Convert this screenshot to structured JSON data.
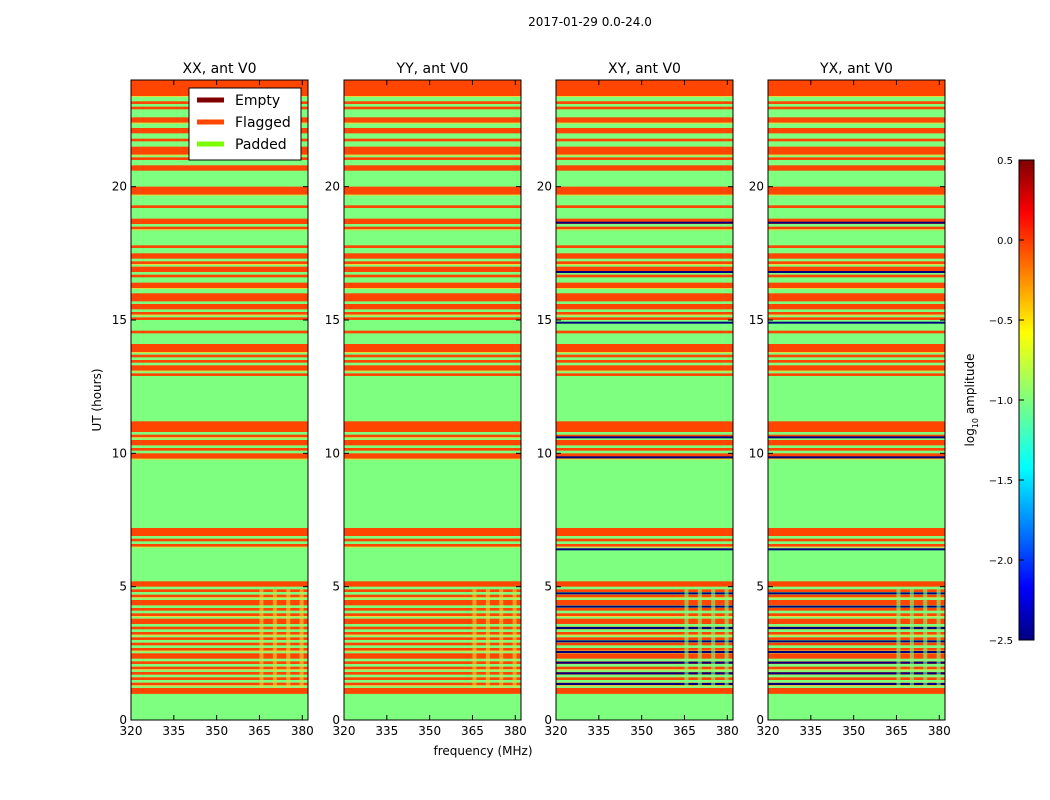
{
  "figure_title": "2017-01-29 0.0-24.0",
  "colors": {
    "empty": "#800000",
    "flagged": "#ff4500",
    "padded": "#7cfc00",
    "background": "#7fff7f",
    "dark": "#00007f",
    "yellow": "#e8d840",
    "cyan": "#3fd9d0"
  },
  "chart_data": {
    "type": "heatmap",
    "shared_axes": {
      "xlabel": "frequency (MHz)",
      "ylabel": "UT (hours)",
      "xlim": [
        320,
        382
      ],
      "ylim": [
        0,
        24
      ],
      "xticks": [
        320,
        335,
        350,
        365,
        380
      ],
      "yticks": [
        0,
        5,
        10,
        15,
        20
      ],
      "xtick_labels": [
        "320",
        "335",
        "350",
        "365",
        "380"
      ],
      "ytick_labels": [
        "0",
        "5",
        "10",
        "15",
        "20"
      ]
    },
    "panels": [
      {
        "title": "XX, ant V0",
        "flag_rows": [
          [
            0.98,
            1.2
          ],
          [
            1.3,
            1.4
          ],
          [
            1.5,
            1.6
          ],
          [
            1.7,
            1.8
          ],
          [
            1.9,
            2.0
          ],
          [
            2.1,
            2.2
          ],
          [
            2.3,
            2.5
          ],
          [
            2.6,
            2.7
          ],
          [
            2.8,
            2.9
          ],
          [
            3.0,
            3.1
          ],
          [
            3.2,
            3.3
          ],
          [
            3.4,
            3.5
          ],
          [
            3.6,
            3.8
          ],
          [
            3.9,
            4.0
          ],
          [
            4.1,
            4.2
          ],
          [
            4.3,
            4.5
          ],
          [
            4.6,
            4.7
          ],
          [
            4.8,
            4.9
          ],
          [
            5.0,
            5.2
          ],
          [
            6.5,
            6.6
          ],
          [
            6.7,
            6.8
          ],
          [
            6.9,
            7.2
          ],
          [
            9.8,
            10.0
          ],
          [
            10.1,
            10.2
          ],
          [
            10.3,
            10.5
          ],
          [
            10.6,
            10.7
          ],
          [
            10.8,
            11.2
          ],
          [
            12.9,
            13.0
          ],
          [
            13.1,
            13.3
          ],
          [
            13.4,
            13.5
          ],
          [
            13.6,
            13.7
          ],
          [
            13.8,
            14.1
          ],
          [
            14.5,
            14.6
          ],
          [
            15.0,
            15.1
          ],
          [
            15.2,
            15.3
          ],
          [
            15.4,
            15.6
          ],
          [
            15.7,
            16.0
          ],
          [
            16.2,
            16.4
          ],
          [
            16.6,
            16.7
          ],
          [
            16.8,
            17.0
          ],
          [
            17.1,
            17.2
          ],
          [
            17.3,
            17.5
          ],
          [
            17.7,
            17.8
          ],
          [
            18.4,
            18.5
          ],
          [
            18.6,
            18.8
          ],
          [
            19.2,
            19.3
          ],
          [
            19.7,
            20.0
          ],
          [
            20.6,
            20.8
          ],
          [
            21.0,
            21.1
          ],
          [
            21.2,
            21.5
          ],
          [
            21.7,
            21.8
          ],
          [
            22.0,
            22.2
          ],
          [
            22.4,
            22.6
          ],
          [
            22.9,
            23.0
          ],
          [
            23.1,
            23.2
          ],
          [
            23.4,
            24.0
          ]
        ],
        "dark_rows": [],
        "legend": [
          "Empty",
          "Flagged",
          "Padded"
        ]
      },
      {
        "title": "YY, ant V0",
        "flag_rows": [
          [
            0.98,
            1.2
          ],
          [
            1.3,
            1.4
          ],
          [
            1.5,
            1.6
          ],
          [
            1.7,
            1.8
          ],
          [
            1.9,
            2.0
          ],
          [
            2.1,
            2.2
          ],
          [
            2.3,
            2.5
          ],
          [
            2.6,
            2.7
          ],
          [
            2.8,
            2.9
          ],
          [
            3.0,
            3.1
          ],
          [
            3.2,
            3.3
          ],
          [
            3.4,
            3.5
          ],
          [
            3.6,
            3.8
          ],
          [
            3.9,
            4.0
          ],
          [
            4.1,
            4.2
          ],
          [
            4.3,
            4.5
          ],
          [
            4.6,
            4.7
          ],
          [
            4.8,
            4.9
          ],
          [
            5.0,
            5.2
          ],
          [
            6.5,
            6.6
          ],
          [
            6.7,
            6.8
          ],
          [
            6.9,
            7.2
          ],
          [
            9.8,
            10.0
          ],
          [
            10.1,
            10.2
          ],
          [
            10.3,
            10.5
          ],
          [
            10.6,
            10.7
          ],
          [
            10.8,
            11.2
          ],
          [
            12.9,
            13.0
          ],
          [
            13.1,
            13.3
          ],
          [
            13.4,
            13.5
          ],
          [
            13.6,
            13.7
          ],
          [
            13.8,
            14.1
          ],
          [
            14.5,
            14.6
          ],
          [
            15.0,
            15.1
          ],
          [
            15.2,
            15.3
          ],
          [
            15.4,
            15.6
          ],
          [
            15.7,
            16.0
          ],
          [
            16.2,
            16.4
          ],
          [
            16.6,
            16.7
          ],
          [
            16.8,
            17.0
          ],
          [
            17.1,
            17.2
          ],
          [
            17.3,
            17.5
          ],
          [
            17.7,
            17.8
          ],
          [
            18.4,
            18.5
          ],
          [
            18.6,
            18.8
          ],
          [
            19.2,
            19.3
          ],
          [
            19.7,
            20.0
          ],
          [
            20.6,
            20.8
          ],
          [
            21.0,
            21.1
          ],
          [
            21.2,
            21.5
          ],
          [
            21.7,
            21.8
          ],
          [
            22.0,
            22.2
          ],
          [
            22.4,
            22.6
          ],
          [
            22.9,
            23.0
          ],
          [
            23.1,
            23.2
          ],
          [
            23.4,
            24.0
          ]
        ],
        "dark_rows": []
      },
      {
        "title": "XY, ant V0",
        "flag_rows": [
          [
            0.98,
            1.2
          ],
          [
            1.3,
            1.4
          ],
          [
            1.5,
            1.6
          ],
          [
            1.7,
            1.8
          ],
          [
            1.9,
            2.0
          ],
          [
            2.1,
            2.2
          ],
          [
            2.3,
            2.5
          ],
          [
            2.6,
            2.7
          ],
          [
            2.8,
            2.9
          ],
          [
            3.0,
            3.1
          ],
          [
            3.2,
            3.3
          ],
          [
            3.4,
            3.5
          ],
          [
            3.6,
            3.8
          ],
          [
            3.9,
            4.0
          ],
          [
            4.1,
            4.2
          ],
          [
            4.3,
            4.5
          ],
          [
            4.6,
            4.7
          ],
          [
            4.8,
            4.9
          ],
          [
            5.0,
            5.2
          ],
          [
            6.5,
            6.6
          ],
          [
            6.7,
            6.8
          ],
          [
            6.9,
            7.2
          ],
          [
            9.8,
            10.0
          ],
          [
            10.1,
            10.2
          ],
          [
            10.3,
            10.5
          ],
          [
            10.6,
            10.7
          ],
          [
            10.8,
            11.2
          ],
          [
            12.9,
            13.0
          ],
          [
            13.1,
            13.3
          ],
          [
            13.4,
            13.5
          ],
          [
            13.6,
            13.7
          ],
          [
            13.8,
            14.1
          ],
          [
            14.5,
            14.6
          ],
          [
            15.0,
            15.1
          ],
          [
            15.2,
            15.3
          ],
          [
            15.4,
            15.6
          ],
          [
            15.7,
            16.0
          ],
          [
            16.2,
            16.4
          ],
          [
            16.6,
            16.7
          ],
          [
            16.8,
            17.0
          ],
          [
            17.1,
            17.2
          ],
          [
            17.3,
            17.5
          ],
          [
            17.7,
            17.8
          ],
          [
            18.4,
            18.5
          ],
          [
            18.6,
            18.8
          ],
          [
            19.2,
            19.3
          ],
          [
            19.7,
            20.0
          ],
          [
            20.6,
            20.8
          ],
          [
            21.0,
            21.1
          ],
          [
            21.2,
            21.5
          ],
          [
            21.7,
            21.8
          ],
          [
            22.0,
            22.2
          ],
          [
            22.4,
            22.6
          ],
          [
            22.9,
            23.0
          ],
          [
            23.1,
            23.2
          ],
          [
            23.4,
            24.0
          ]
        ],
        "dark_rows": [
          1.35,
          1.75,
          2.15,
          2.55,
          2.95,
          3.45,
          4.25,
          4.75,
          6.4,
          9.85,
          10.6,
          14.9,
          16.8,
          18.65
        ]
      },
      {
        "title": "YX, ant V0",
        "flag_rows": [
          [
            0.98,
            1.2
          ],
          [
            1.3,
            1.4
          ],
          [
            1.5,
            1.6
          ],
          [
            1.7,
            1.8
          ],
          [
            1.9,
            2.0
          ],
          [
            2.1,
            2.2
          ],
          [
            2.3,
            2.5
          ],
          [
            2.6,
            2.7
          ],
          [
            2.8,
            2.9
          ],
          [
            3.0,
            3.1
          ],
          [
            3.2,
            3.3
          ],
          [
            3.4,
            3.5
          ],
          [
            3.6,
            3.8
          ],
          [
            3.9,
            4.0
          ],
          [
            4.1,
            4.2
          ],
          [
            4.3,
            4.5
          ],
          [
            4.6,
            4.7
          ],
          [
            4.8,
            4.9
          ],
          [
            5.0,
            5.2
          ],
          [
            6.5,
            6.6
          ],
          [
            6.7,
            6.8
          ],
          [
            6.9,
            7.2
          ],
          [
            9.8,
            10.0
          ],
          [
            10.1,
            10.2
          ],
          [
            10.3,
            10.5
          ],
          [
            10.6,
            10.7
          ],
          [
            10.8,
            11.2
          ],
          [
            12.9,
            13.0
          ],
          [
            13.1,
            13.3
          ],
          [
            13.4,
            13.5
          ],
          [
            13.6,
            13.7
          ],
          [
            13.8,
            14.1
          ],
          [
            14.5,
            14.6
          ],
          [
            15.0,
            15.1
          ],
          [
            15.2,
            15.3
          ],
          [
            15.4,
            15.6
          ],
          [
            15.7,
            16.0
          ],
          [
            16.2,
            16.4
          ],
          [
            16.6,
            16.7
          ],
          [
            16.8,
            17.0
          ],
          [
            17.1,
            17.2
          ],
          [
            17.3,
            17.5
          ],
          [
            17.7,
            17.8
          ],
          [
            18.4,
            18.5
          ],
          [
            18.6,
            18.8
          ],
          [
            19.2,
            19.3
          ],
          [
            19.7,
            20.0
          ],
          [
            20.6,
            20.8
          ],
          [
            21.0,
            21.1
          ],
          [
            21.2,
            21.5
          ],
          [
            21.7,
            21.8
          ],
          [
            22.0,
            22.2
          ],
          [
            22.4,
            22.6
          ],
          [
            22.9,
            23.0
          ],
          [
            23.1,
            23.2
          ],
          [
            23.4,
            24.0
          ]
        ],
        "dark_rows": [
          1.35,
          1.75,
          2.15,
          2.55,
          2.95,
          3.45,
          4.25,
          4.75,
          6.4,
          9.85,
          10.6,
          14.9,
          16.8,
          18.65
        ]
      }
    ],
    "legend": {
      "placement": "top-left of first panel",
      "entries": [
        {
          "label": "Empty",
          "color": "#800000"
        },
        {
          "label": "Flagged",
          "color": "#ff4500"
        },
        {
          "label": "Padded",
          "color": "#7cfc00"
        }
      ]
    },
    "colorbar": {
      "label": "log10 amplitude",
      "label_base": "log",
      "label_sub": "10",
      "label_rest": " amplitude",
      "range": [
        -2.5,
        0.5
      ],
      "ticks": [
        0.5,
        0.0,
        -0.5,
        -1.0,
        -1.5,
        -2.0,
        -2.5
      ],
      "tick_labels": [
        "0.5",
        "0.0",
        "−0.5",
        "−1.0",
        "−1.5",
        "−2.0",
        "−2.5"
      ],
      "colormap": "jet"
    }
  }
}
